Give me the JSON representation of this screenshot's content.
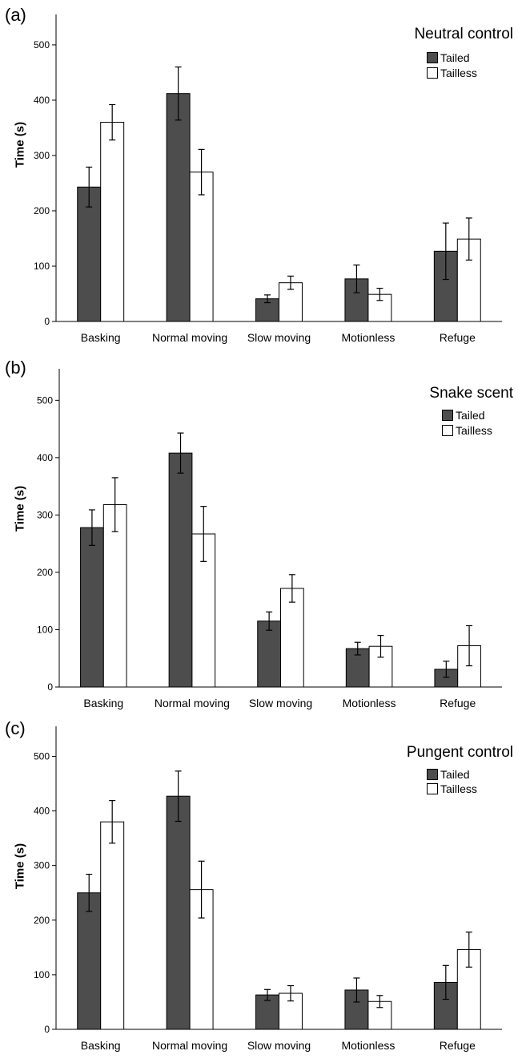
{
  "chart_data": [
    {
      "type": "bar",
      "panel_label": "(a)",
      "title": "Neutral control",
      "ylabel": "Time (s)",
      "categories": [
        "Basking",
        "Normal moving",
        "Slow moving",
        "Motionless",
        "Refuge"
      ],
      "series": [
        {
          "name": "Tailed",
          "values": [
            243,
            412,
            41,
            77,
            127
          ],
          "errors": [
            36,
            48,
            7,
            25,
            51
          ]
        },
        {
          "name": "Tailless",
          "values": [
            360,
            270,
            70,
            49,
            149
          ],
          "errors": [
            32,
            41,
            12,
            11,
            38
          ]
        }
      ],
      "yticks": [
        0,
        100,
        200,
        300,
        400,
        500
      ],
      "ylim": [
        0,
        555
      ],
      "legend_position": "top-right",
      "colors": {
        "Tailed": "#4d4d4d",
        "Tailless": "#ffffff"
      }
    },
    {
      "type": "bar",
      "panel_label": "(b)",
      "title": "Snake scent",
      "ylabel": "Time (s)",
      "categories": [
        "Basking",
        "Normal moving",
        "Slow moving",
        "Motionless",
        "Refuge"
      ],
      "series": [
        {
          "name": "Tailed",
          "values": [
            278,
            408,
            115,
            67,
            31
          ],
          "errors": [
            31,
            35,
            16,
            11,
            14
          ]
        },
        {
          "name": "Tailless",
          "values": [
            318,
            267,
            172,
            71,
            72
          ],
          "errors": [
            47,
            48,
            24,
            19,
            35
          ]
        }
      ],
      "yticks": [
        0,
        100,
        200,
        300,
        400,
        500
      ],
      "ylim": [
        0,
        555
      ],
      "legend_position": "top-right",
      "colors": {
        "Tailed": "#4d4d4d",
        "Tailless": "#ffffff"
      }
    },
    {
      "type": "bar",
      "panel_label": "(c)",
      "title": "Pungent control",
      "ylabel": "Time (s)",
      "categories": [
        "Basking",
        "Normal moving",
        "Slow moving",
        "Motionless",
        "Refuge"
      ],
      "series": [
        {
          "name": "Tailed",
          "values": [
            250,
            427,
            63,
            72,
            86
          ],
          "errors": [
            34,
            46,
            10,
            22,
            31
          ]
        },
        {
          "name": "Tailless",
          "values": [
            380,
            256,
            66,
            51,
            146
          ],
          "errors": [
            39,
            52,
            14,
            11,
            32
          ]
        }
      ],
      "yticks": [
        0,
        100,
        200,
        300,
        400,
        500
      ],
      "ylim": [
        0,
        555
      ],
      "legend_position": "top-right",
      "colors": {
        "Tailed": "#4d4d4d",
        "Tailless": "#ffffff"
      }
    }
  ]
}
